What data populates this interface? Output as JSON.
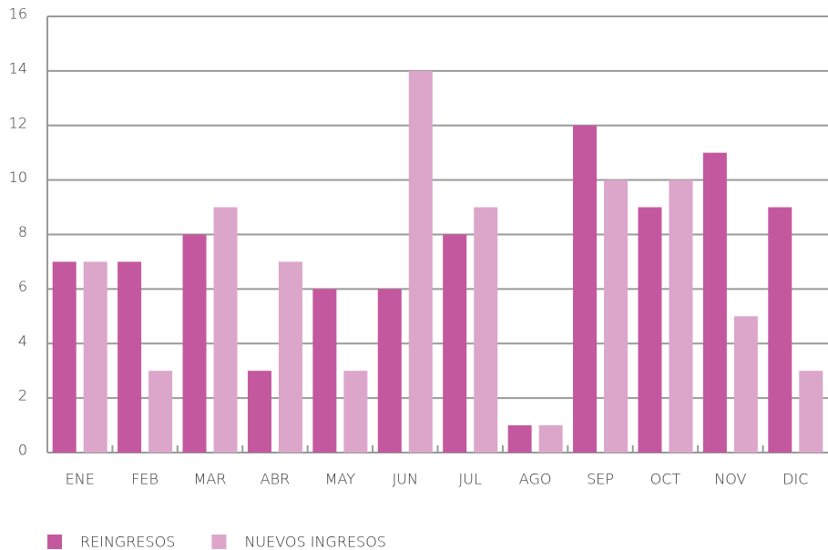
{
  "chart_data": {
    "type": "bar",
    "categories": [
      "ENE",
      "FEB",
      "MAR",
      "ABR",
      "MAY",
      "JUN",
      "JUL",
      "AGO",
      "SEP",
      "OCT",
      "NOV",
      "DIC"
    ],
    "series": [
      {
        "name": "REINGRESOS",
        "color": "#c4589f",
        "values": [
          7,
          7,
          8,
          3,
          6,
          6,
          8,
          1,
          12,
          9,
          11,
          9
        ]
      },
      {
        "name": "NUEVOS INGRESOS",
        "color": "#dca6cb",
        "values": [
          7,
          3,
          9,
          7,
          3,
          14,
          9,
          1,
          10,
          10,
          5,
          3
        ]
      }
    ],
    "ylim": [
      0,
      16
    ],
    "yticks": [
      0,
      2,
      4,
      6,
      8,
      10,
      12,
      14,
      16
    ],
    "grid": true,
    "legend": "bottom-left"
  }
}
